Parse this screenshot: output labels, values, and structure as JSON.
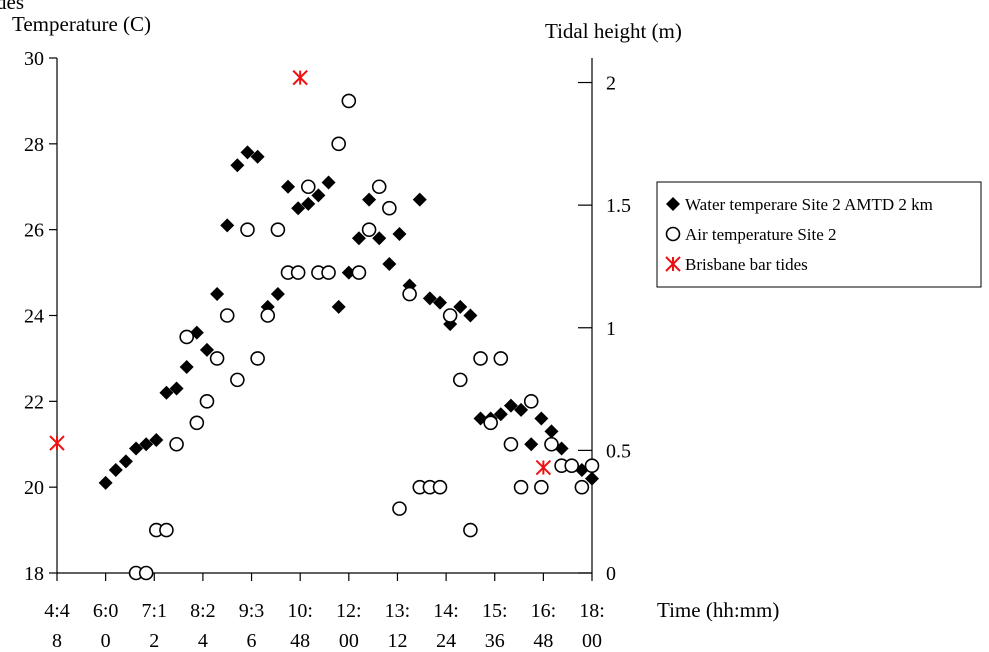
{
  "chart_data": {
    "type": "scatter",
    "title": "",
    "title_fragment": "des",
    "ylabel_left": "Temperature (C)",
    "ylabel_right": "Tidal height (m)",
    "xlabel": "Time (hh:mm)",
    "ylim_left": [
      18,
      30
    ],
    "yticks_left": [
      "18",
      "20",
      "22",
      "24",
      "26",
      "28",
      "30"
    ],
    "ylim_right": [
      0,
      2.1
    ],
    "yticks_right": [
      "0",
      "0.5",
      "1",
      "1.5",
      "2"
    ],
    "xlim_hours": [
      4.8,
      18.0
    ],
    "xticks": [
      {
        "line1": "4:4",
        "line2": "8"
      },
      {
        "line1": "6:0",
        "line2": "0"
      },
      {
        "line1": "7:1",
        "line2": "2"
      },
      {
        "line1": "8:2",
        "line2": "4"
      },
      {
        "line1": "9:3",
        "line2": "6"
      },
      {
        "line1": "10:",
        "line2": "48"
      },
      {
        "line1": "12:",
        "line2": "00"
      },
      {
        "line1": "13:",
        "line2": "12"
      },
      {
        "line1": "14:",
        "line2": "24"
      },
      {
        "line1": "15:",
        "line2": "36"
      },
      {
        "line1": "16:",
        "line2": "48"
      },
      {
        "line1": "18:",
        "line2": "00"
      }
    ],
    "legend_position": "right",
    "series": [
      {
        "name": "Water temperare Site 2 AMTD 2 km",
        "marker": "diamond",
        "color": "#000000",
        "axis": "left",
        "x": [
          6.0,
          6.25,
          6.5,
          6.75,
          7.0,
          7.25,
          7.5,
          7.75,
          8.0,
          8.25,
          8.5,
          8.75,
          9.0,
          9.25,
          9.5,
          9.75,
          10.0,
          10.25,
          10.5,
          10.75,
          11.0,
          11.25,
          11.5,
          11.75,
          12.0,
          12.25,
          12.5,
          12.75,
          13.0,
          13.25,
          13.5,
          13.75,
          14.0,
          14.25,
          14.5,
          14.75,
          15.0,
          15.25,
          15.5,
          15.75,
          16.0,
          16.25,
          16.5,
          16.75,
          17.0,
          17.25,
          17.5,
          17.75,
          18.0
        ],
        "y": [
          20.1,
          20.4,
          20.6,
          20.9,
          21.0,
          21.1,
          22.2,
          22.3,
          22.8,
          23.6,
          23.2,
          24.5,
          26.1,
          27.5,
          27.8,
          27.7,
          24.2,
          24.5,
          27.0,
          26.5,
          26.6,
          26.8,
          27.1,
          24.2,
          25.0,
          25.8,
          26.7,
          25.8,
          25.2,
          25.9,
          24.7,
          26.7,
          24.4,
          24.3,
          23.8,
          24.2,
          24.0,
          21.6,
          21.6,
          21.7,
          21.9,
          21.8,
          21.0,
          21.6,
          21.3,
          20.9,
          20.5,
          20.4,
          20.2
        ]
      },
      {
        "name": "Air temperature Site 2",
        "marker": "open-circle",
        "color": "#000000",
        "axis": "left",
        "x": [
          6.75,
          7.0,
          7.25,
          7.5,
          7.75,
          8.0,
          8.25,
          8.5,
          8.75,
          9.0,
          9.25,
          9.5,
          9.75,
          10.0,
          10.25,
          10.5,
          10.75,
          11.0,
          11.25,
          11.5,
          11.75,
          12.0,
          12.25,
          12.5,
          12.75,
          13.0,
          13.25,
          13.5,
          13.75,
          14.0,
          14.25,
          14.5,
          14.75,
          15.0,
          15.25,
          15.5,
          15.75,
          16.0,
          16.25,
          16.5,
          16.75,
          17.0,
          17.25,
          17.5,
          17.75,
          18.0
        ],
        "y": [
          18.0,
          18.0,
          19.0,
          19.0,
          21.0,
          23.5,
          21.5,
          22.0,
          23.0,
          24.0,
          22.5,
          26.0,
          23.0,
          24.0,
          26.0,
          25.0,
          25.0,
          27.0,
          25.0,
          25.0,
          28.0,
          29.0,
          25.0,
          26.0,
          27.0,
          26.5,
          19.5,
          24.5,
          20.0,
          20.0,
          20.0,
          24.0,
          22.5,
          19.0,
          23.0,
          21.5,
          23.0,
          21.0,
          20.0,
          22.0,
          20.0,
          21.0,
          20.5,
          20.5,
          20.0,
          20.5
        ]
      },
      {
        "name": "Brisbane bar tides",
        "marker": "asterisk",
        "color": "#ee1111",
        "axis": "right",
        "x": [
          4.8,
          10.8,
          16.8
        ],
        "y": [
          0.53,
          2.02,
          0.43
        ]
      }
    ]
  }
}
